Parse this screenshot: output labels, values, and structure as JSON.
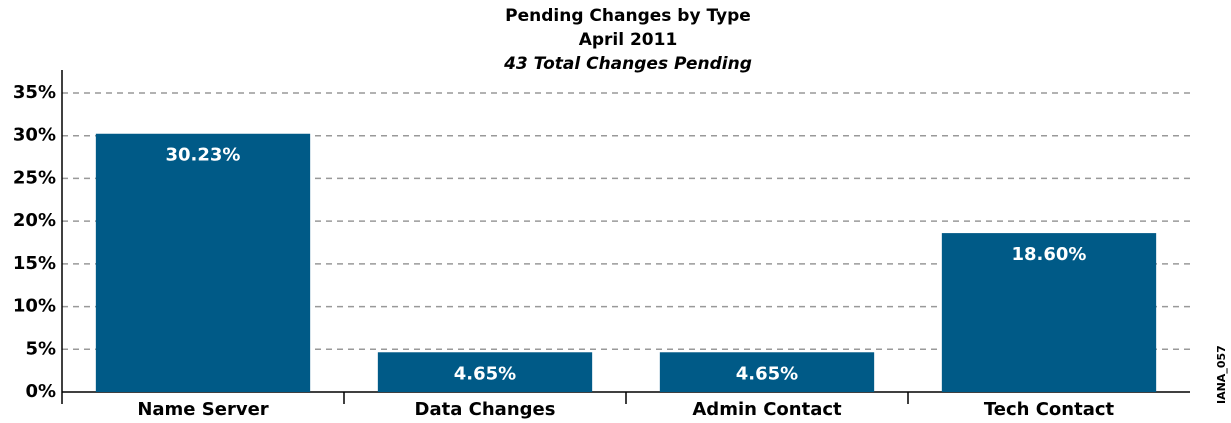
{
  "chart_data": {
    "type": "bar",
    "title": "Pending Changes by Type",
    "subtitle": "April 2011",
    "caption": "43 Total Changes Pending",
    "side_label": "IANA_057",
    "categories": [
      "Name Server",
      "Data Changes",
      "Admin Contact",
      "Tech Contact"
    ],
    "values": [
      30.23,
      4.65,
      4.65,
      18.6
    ],
    "value_labels": [
      "30.23%",
      "4.65%",
      "4.65%",
      "18.60%"
    ],
    "color": "#005a87",
    "ylim": [
      0,
      35
    ],
    "yticks": [
      {
        "value": 0,
        "label": "0%"
      },
      {
        "value": 5,
        "label": "5%"
      },
      {
        "value": 10,
        "label": "10%"
      },
      {
        "value": 15,
        "label": "15%"
      },
      {
        "value": 20,
        "label": "20%"
      },
      {
        "value": 25,
        "label": "25%"
      },
      {
        "value": 30,
        "label": "30%"
      },
      {
        "value": 35,
        "label": "35%"
      }
    ],
    "grid": true
  }
}
